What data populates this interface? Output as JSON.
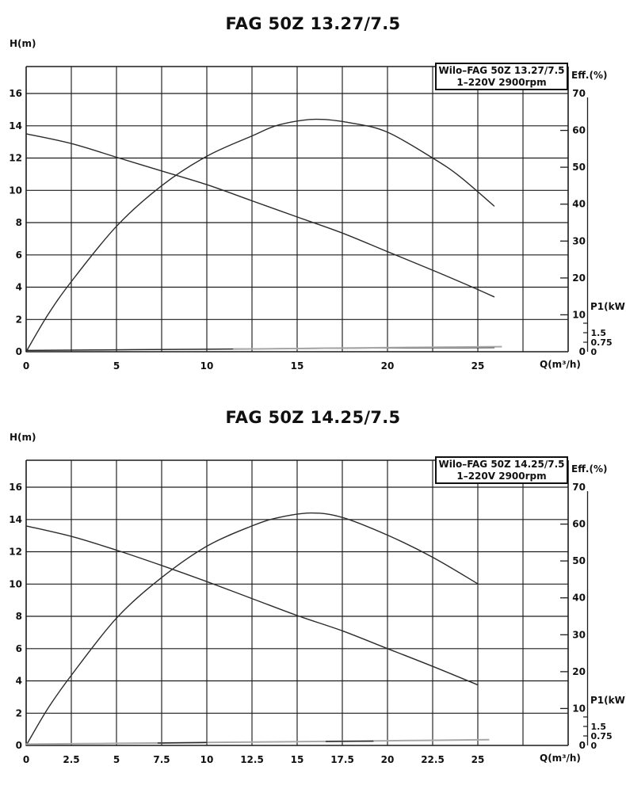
{
  "page": {
    "background": "#ffffff"
  },
  "colors": {
    "curve": "#2b2b2b",
    "grid": "#1c1c1c",
    "gray_curve": "#a8a8a8",
    "text": "#101010"
  },
  "chart_data": [
    {
      "type": "line",
      "title": "FAG 50Z 13.27/7.5",
      "legend": {
        "line1": "Wilo–FAG 50Z 13.27/7.5",
        "line2": "1–220V 2900rpm",
        "position": "top-right"
      },
      "axes": {
        "x": {
          "label": "Q(m³/h)",
          "min": 0,
          "max": 30,
          "grid_step": 2.5,
          "tick_labels": [
            "0",
            "5",
            "10",
            "15",
            "20",
            "25"
          ],
          "tick_values": [
            0,
            5,
            10,
            15,
            20,
            25
          ]
        },
        "h": {
          "label": "H(m)",
          "min": 0,
          "max": 16,
          "grid_step": 2,
          "tick_values": [
            0,
            2,
            4,
            6,
            8,
            10,
            12,
            14,
            16
          ]
        },
        "eff": {
          "label": "Eff.(%)",
          "min": 0,
          "max": 70,
          "tick_values": [
            0,
            10,
            20,
            30,
            40,
            50,
            60,
            70
          ]
        },
        "p1": {
          "label": "P1(kW)",
          "tick_labels": [
            "1.5",
            "0.75",
            "0"
          ],
          "tick_values": [
            1.5,
            0.75,
            0
          ],
          "unlabeled_tick": 2.25
        }
      },
      "grid": true,
      "series": [
        {
          "name": "head-curve",
          "axis": "h",
          "color": "curve",
          "points": [
            [
              0,
              13.5
            ],
            [
              2.5,
              12.9
            ],
            [
              5,
              12.05
            ],
            [
              7.5,
              11.2
            ],
            [
              10,
              10.35
            ],
            [
              12.5,
              9.35
            ],
            [
              15,
              8.35
            ],
            [
              17.5,
              7.35
            ],
            [
              20,
              6.2
            ],
            [
              22.5,
              5.05
            ],
            [
              24.5,
              4.1
            ],
            [
              25.9,
              3.4
            ]
          ]
        },
        {
          "name": "efficiency-curve",
          "axis": "eff",
          "color": "curve",
          "points": [
            [
              0,
              0
            ],
            [
              1.2,
              10
            ],
            [
              2.5,
              19
            ],
            [
              5,
              34
            ],
            [
              7.5,
              45
            ],
            [
              10,
              53
            ],
            [
              12.5,
              58.5
            ],
            [
              14,
              61.5
            ],
            [
              16,
              63
            ],
            [
              18,
              62
            ],
            [
              20,
              59.5
            ],
            [
              22.5,
              52.5
            ],
            [
              24,
              47.5
            ],
            [
              25.9,
              39.5
            ]
          ]
        },
        {
          "name": "power-p1-curve",
          "axis": "p1",
          "color": "curve",
          "points": [
            [
              0,
              0.1
            ],
            [
              6,
              0.16
            ],
            [
              12,
              0.22
            ],
            [
              18,
              0.28
            ],
            [
              21,
              0.3
            ],
            [
              25.9,
              0.33
            ]
          ]
        },
        {
          "name": "power-p1-curve-gray",
          "axis": "p1",
          "color": "gray_curve",
          "points": [
            [
              11.5,
              0.2
            ],
            [
              18,
              0.3
            ],
            [
              26.3,
              0.4
            ]
          ]
        }
      ]
    },
    {
      "type": "line",
      "title": "FAG 50Z 14.25/7.5",
      "legend": {
        "line1": "Wilo–FAG 50Z 14.25/7.5",
        "line2": "1–220V 2900rpm",
        "position": "top-right"
      },
      "axes": {
        "x": {
          "label": "Q(m³/h)",
          "min": 0,
          "max": 30,
          "grid_step": 2.5,
          "tick_labels": [
            "0",
            "2.5",
            "5",
            "7.5",
            "10",
            "12.5",
            "15",
            "17.5",
            "20",
            "22.5",
            "25"
          ],
          "tick_values": [
            0,
            2.5,
            5,
            7.5,
            10,
            12.5,
            15,
            17.5,
            20,
            22.5,
            25
          ]
        },
        "h": {
          "label": "H(m)",
          "min": 0,
          "max": 16,
          "grid_step": 2,
          "tick_values": [
            0,
            2,
            4,
            6,
            8,
            10,
            12,
            14,
            16
          ]
        },
        "eff": {
          "label": "Eff.(%)",
          "min": 0,
          "max": 70,
          "tick_values": [
            0,
            10,
            20,
            30,
            40,
            50,
            60,
            70
          ]
        },
        "p1": {
          "label": "P1(kW)",
          "tick_labels": [
            "1.5",
            "0.75",
            "0"
          ],
          "tick_values": [
            1.5,
            0.75,
            0
          ],
          "unlabeled_tick": 2.25
        }
      },
      "grid": true,
      "series": [
        {
          "name": "head-curve",
          "axis": "h",
          "color": "curve",
          "points": [
            [
              0,
              13.6
            ],
            [
              2.5,
              12.95
            ],
            [
              5,
              12.1
            ],
            [
              7.5,
              11.15
            ],
            [
              10,
              10.15
            ],
            [
              12.5,
              9.1
            ],
            [
              15,
              8.05
            ],
            [
              17.5,
              7.1
            ],
            [
              20,
              6.0
            ],
            [
              22.5,
              4.9
            ],
            [
              25,
              3.75
            ]
          ]
        },
        {
          "name": "efficiency-curve",
          "axis": "eff",
          "color": "curve",
          "points": [
            [
              0,
              0
            ],
            [
              1.2,
              10
            ],
            [
              2.5,
              19
            ],
            [
              5,
              34.5
            ],
            [
              7.5,
              45.5
            ],
            [
              10,
              54
            ],
            [
              12.5,
              59.5
            ],
            [
              14,
              61.8
            ],
            [
              15.8,
              63
            ],
            [
              17.5,
              61.8
            ],
            [
              20,
              57
            ],
            [
              22.5,
              51
            ],
            [
              25,
              43.8
            ]
          ]
        },
        {
          "name": "power-p1-curve-gray",
          "axis": "p1",
          "color": "gray_curve",
          "points": [
            [
              0,
              0.1
            ],
            [
              5,
              0.16
            ],
            [
              10,
              0.23
            ],
            [
              15,
              0.3
            ],
            [
              20,
              0.37
            ],
            [
              25.6,
              0.45
            ]
          ]
        },
        {
          "name": "power-p1-curve",
          "axis": "p1",
          "color": "curve",
          "points": [
            [
              7.3,
              0.19
            ],
            [
              10,
              0.23
            ]
          ]
        },
        {
          "name": "power-p1-curve-2",
          "axis": "p1",
          "color": "curve",
          "points": [
            [
              16.6,
              0.31
            ],
            [
              19.2,
              0.34
            ]
          ]
        }
      ]
    }
  ]
}
